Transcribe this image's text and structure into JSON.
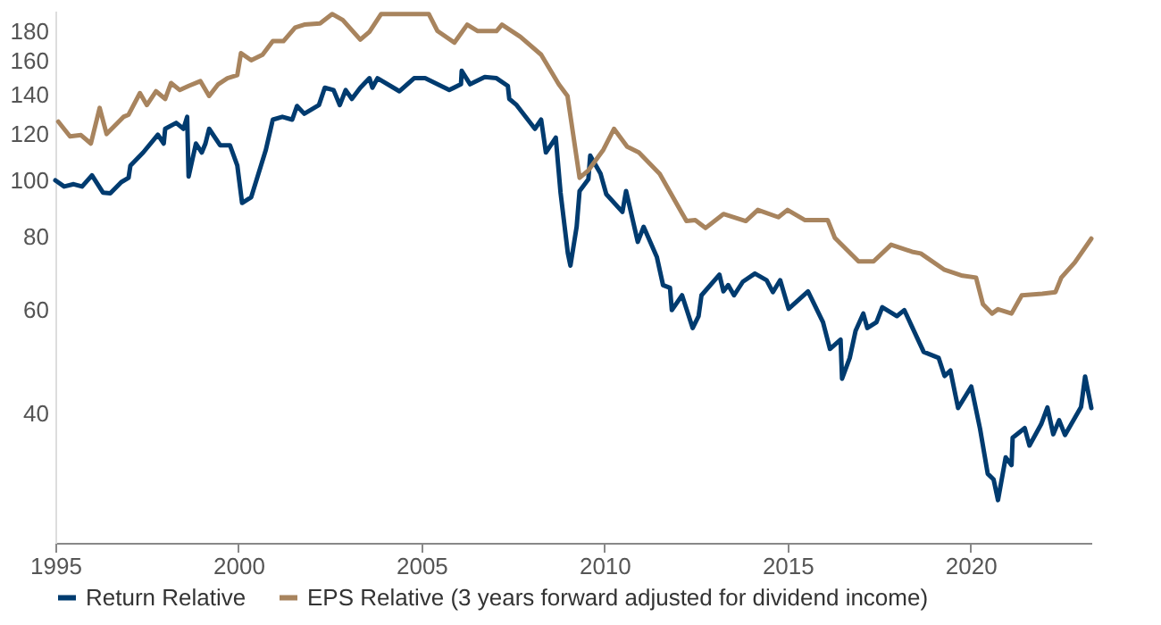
{
  "chart_data": {
    "type": "line",
    "log": "y",
    "xlim": [
      1995,
      2023.3
    ],
    "xticks": [
      1995,
      2000,
      2005,
      2010,
      2015,
      2020
    ],
    "ylim": [
      24,
      195
    ],
    "yticks": [
      40,
      60,
      80,
      100,
      120,
      140,
      160,
      180
    ],
    "grid": false,
    "legend": "bottom",
    "marker": "none",
    "line_style": "solid",
    "series": [
      {
        "name": "Return Relative",
        "color": "#003b6f",
        "x": [
          1995.0,
          1995.24,
          1995.5,
          1995.73,
          1996.0,
          1996.3,
          1996.5,
          1996.8,
          1997.0,
          1997.05,
          1997.4,
          1997.8,
          1997.96,
          1998.0,
          1998.3,
          1998.5,
          1998.6,
          1998.64,
          1998.84,
          1999.0,
          1999.1,
          1999.2,
          1999.5,
          1999.77,
          1999.97,
          2000.1,
          2000.35,
          2000.75,
          2000.94,
          2001.2,
          2001.47,
          2001.6,
          2001.8,
          2002.2,
          2002.36,
          2002.6,
          2002.77,
          2002.93,
          2003.1,
          2003.33,
          2003.58,
          2003.66,
          2003.8,
          2004.4,
          2004.8,
          2005.1,
          2005.76,
          2006.08,
          2006.1,
          2006.33,
          2006.73,
          2007.05,
          2007.36,
          2007.4,
          2007.6,
          2008.1,
          2008.27,
          2008.4,
          2008.67,
          2008.8,
          2009.0,
          2009.07,
          2009.24,
          2009.32,
          2009.56,
          2009.61,
          2009.89,
          2010.05,
          2010.49,
          2010.59,
          2010.91,
          2011.07,
          2011.43,
          2011.6,
          2011.79,
          2011.84,
          2012.12,
          2012.41,
          2012.57,
          2012.65,
          2013.14,
          2013.25,
          2013.38,
          2013.54,
          2013.78,
          2014.11,
          2014.43,
          2014.6,
          2014.8,
          2015.03,
          2015.56,
          2015.97,
          2016.16,
          2016.45,
          2016.49,
          2016.7,
          2016.86,
          2017.07,
          2017.18,
          2017.43,
          2017.59,
          2017.99,
          2018.19,
          2018.72,
          2019.13,
          2019.29,
          2019.45,
          2019.66,
          2020.02,
          2020.26,
          2020.47,
          2020.63,
          2020.75,
          2020.96,
          2021.12,
          2021.15,
          2021.48,
          2021.61,
          2021.93,
          2022.1,
          2022.26,
          2022.42,
          2022.58,
          2023.02,
          2023.13,
          2023.3
        ],
        "values": [
          100,
          97.6,
          98.5,
          97.6,
          102,
          95.3,
          95,
          99.3,
          101,
          106,
          111.6,
          119.7,
          115.6,
          122.5,
          125.4,
          122.5,
          128.4,
          101.5,
          115.6,
          111.6,
          115.6,
          122.5,
          114.8,
          114.8,
          106,
          91.5,
          93.6,
          112.8,
          127,
          128.4,
          127,
          134,
          130,
          134.5,
          144,
          142.7,
          134.5,
          142.7,
          137.8,
          144,
          149.5,
          144,
          149.5,
          142,
          149.5,
          149.5,
          142.7,
          146,
          153.9,
          146,
          150.2,
          149.5,
          145,
          137.8,
          134.5,
          122.5,
          127,
          111.6,
          118.3,
          95.3,
          75,
          71.5,
          83.3,
          95.9,
          100.4,
          110.2,
          102.8,
          94.7,
          88.3,
          95.9,
          78.5,
          83.3,
          74,
          66.2,
          65.5,
          60,
          63.6,
          55.9,
          58.6,
          63.6,
          69,
          64.6,
          66.2,
          63.6,
          67.1,
          69.3,
          67.5,
          64.4,
          67.5,
          60.3,
          64.6,
          57.2,
          51.5,
          53.4,
          45.8,
          49.7,
          55.3,
          59.2,
          55.9,
          57.2,
          60.7,
          58.6,
          60,
          50.9,
          49.7,
          46.3,
          47.3,
          40.8,
          44.4,
          37.6,
          31.5,
          30.8,
          28.4,
          33.6,
          32.6,
          36.3,
          37.7,
          35.2,
          38.3,
          40.9,
          36.8,
          38.9,
          36.7,
          41,
          46.2,
          40.8
        ]
      },
      {
        "name": "EPS Relative (3 years forward adjusted for dividend income)",
        "color": "#a8845e",
        "x": [
          1995.08,
          1995.4,
          1995.7,
          1995.97,
          1996.21,
          1996.4,
          1996.86,
          1997.0,
          1997.31,
          1997.5,
          1997.75,
          1998.0,
          1998.16,
          1998.4,
          1998.64,
          1998.96,
          1999.2,
          1999.45,
          1999.7,
          1999.97,
          2000.07,
          2000.35,
          2000.66,
          2000.94,
          2001.23,
          2001.55,
          2001.8,
          2002.23,
          2002.56,
          2002.85,
          2003.33,
          2003.58,
          2003.9,
          2005.2,
          2005.44,
          2005.9,
          2006.25,
          2006.54,
          2007.05,
          2007.2,
          2007.7,
          2008.27,
          2008.75,
          2008.99,
          2009.32,
          2009.56,
          2009.97,
          2010.26,
          2010.62,
          2010.94,
          2011.51,
          2012.24,
          2012.48,
          2012.76,
          2013.25,
          2013.86,
          2014.19,
          2014.75,
          2015.0,
          2015.48,
          2016.1,
          2016.29,
          2016.94,
          2017.35,
          2017.83,
          2018.4,
          2018.64,
          2019.29,
          2019.78,
          2020.15,
          2020.34,
          2020.59,
          2020.75,
          2021.12,
          2021.4,
          2021.96,
          2022.32,
          2022.48,
          2022.85,
          2023.3
        ],
        "values": [
          126,
          118.9,
          119.5,
          115.6,
          133,
          120,
          128.4,
          129.5,
          141,
          134.5,
          142,
          137.8,
          146.7,
          142.7,
          145,
          147.8,
          139.4,
          146,
          149.5,
          151.3,
          165,
          160.4,
          164,
          173,
          173,
          182.5,
          184.6,
          185.5,
          192.5,
          188,
          174,
          179.5,
          192.5,
          192.5,
          180,
          172,
          184.6,
          180,
          180,
          184.6,
          176,
          164,
          146,
          139.4,
          101,
          104,
          112.8,
          122.5,
          114.2,
          111.6,
          102.6,
          85.2,
          85.5,
          82.9,
          87.6,
          85.2,
          89,
          86.5,
          89,
          85.5,
          85.5,
          79.8,
          72.7,
          72.7,
          77.6,
          75.5,
          75,
          70.3,
          68.7,
          68.2,
          61.4,
          59.2,
          60.2,
          59.2,
          63.6,
          64,
          64.4,
          68.2,
          72.4,
          79.5
        ]
      }
    ]
  }
}
